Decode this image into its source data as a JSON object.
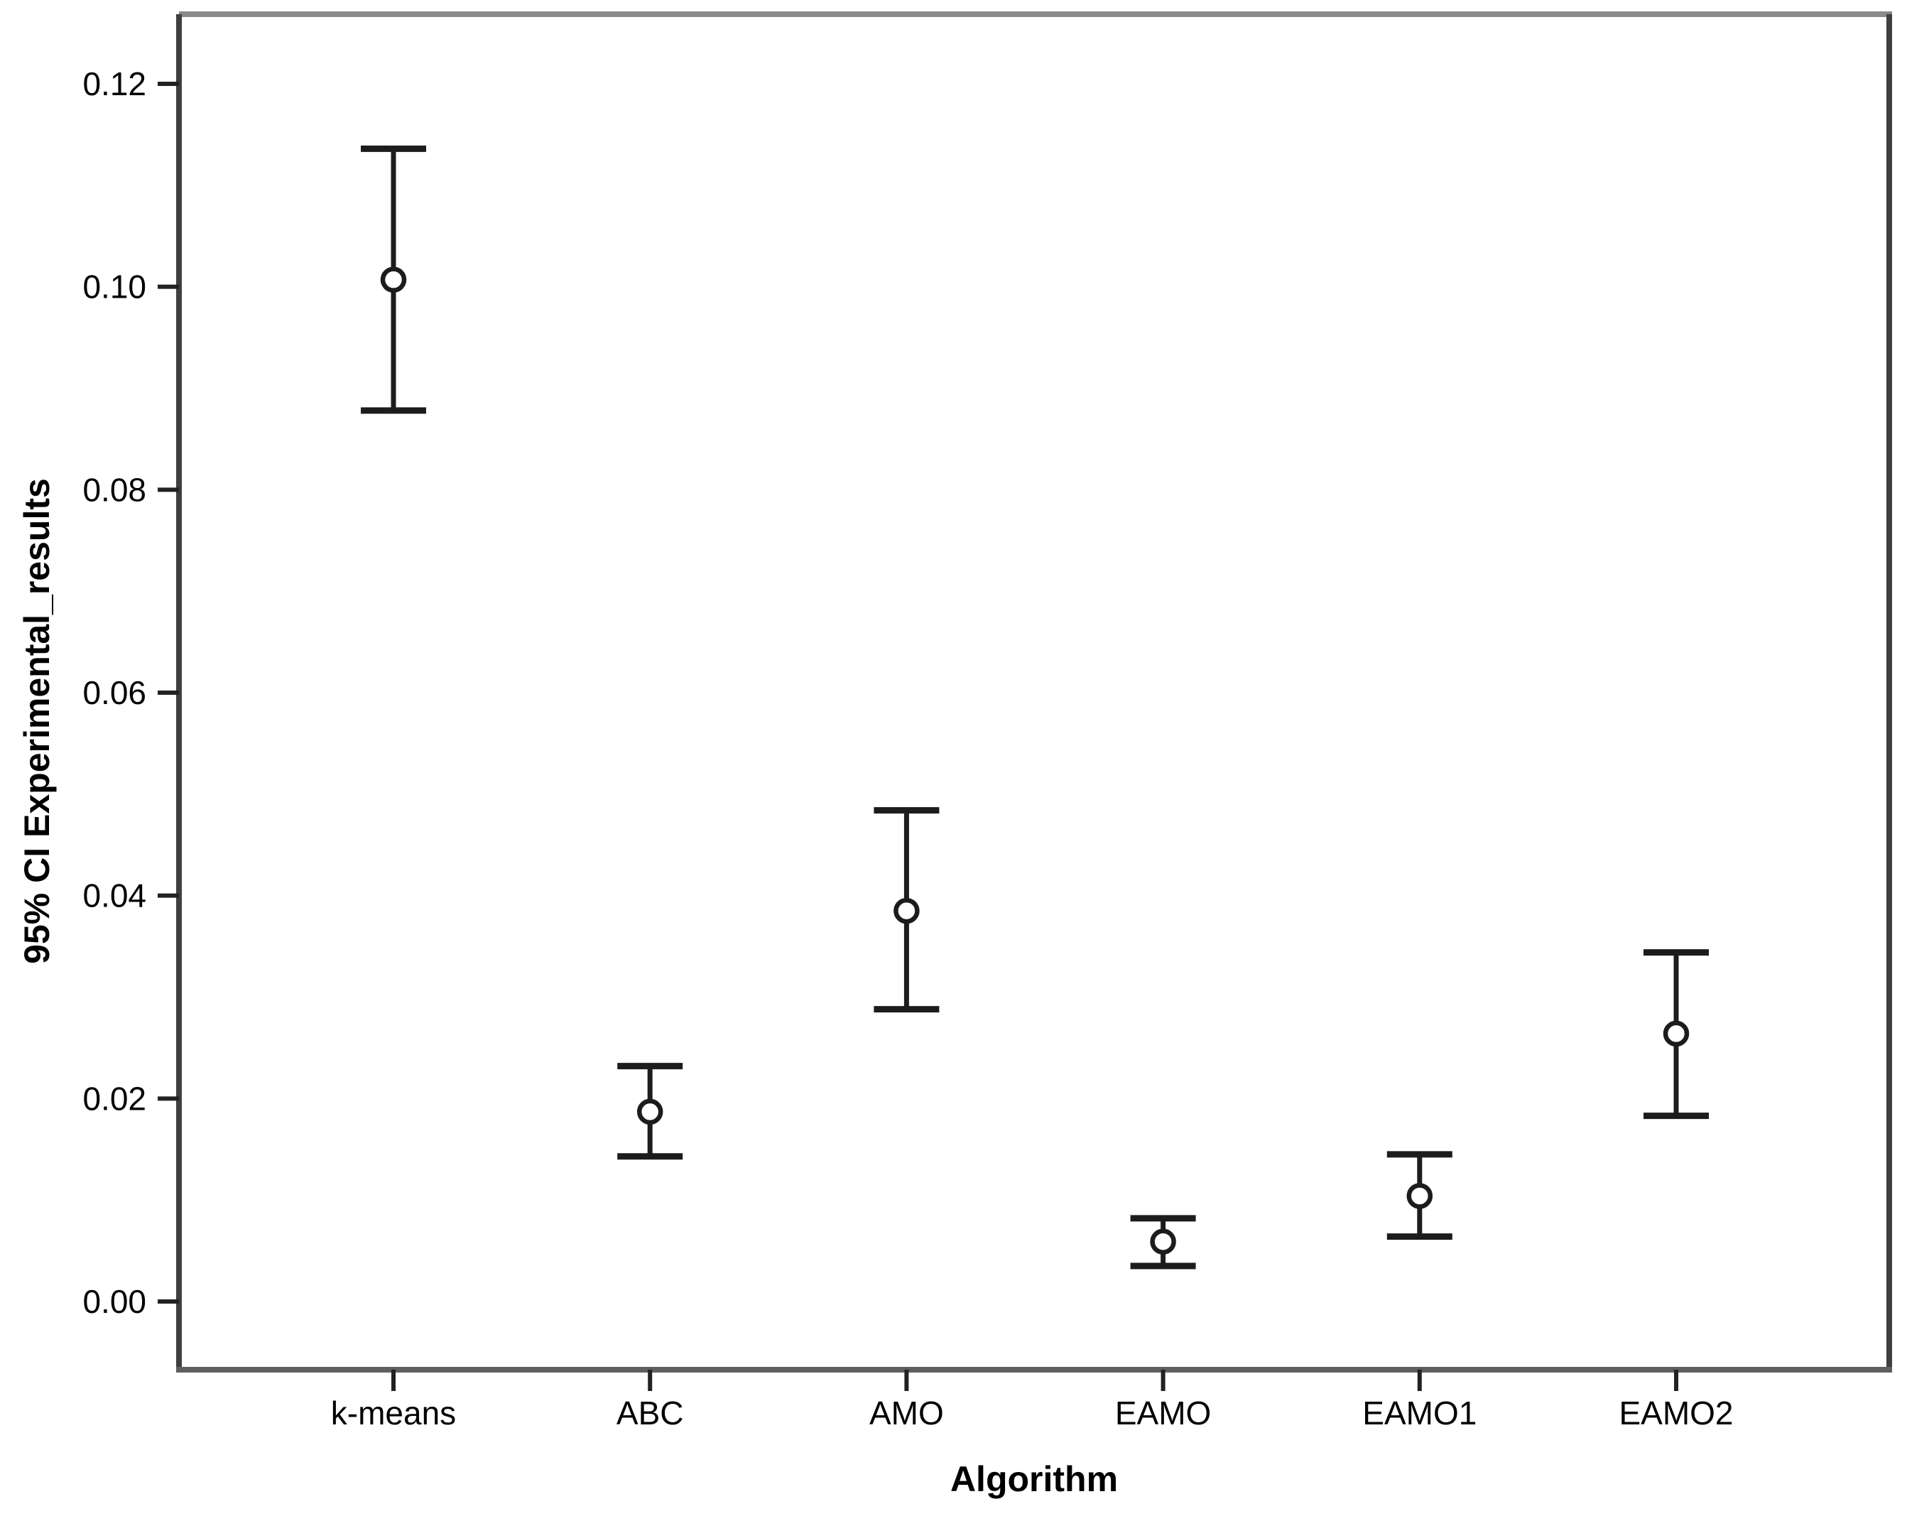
{
  "figure": {
    "background_color": "#ffffff",
    "frame_colors": {
      "top": "#8a8a8a",
      "right": "#3f3f3f",
      "left": "#3f3f3f",
      "bottom": "#5f5f5f"
    },
    "errorbar_color": "#1c1c1c",
    "marker_style": "open-circle",
    "marker_fill": "#ffffff"
  },
  "chart_data": {
    "type": "scatter",
    "subtype": "error-bar-95ci",
    "title": "",
    "xlabel": "Algorithm",
    "ylabel": "95% CI Experimental_results",
    "categories": [
      "k-means",
      "ABC",
      "AMO",
      "EAMO",
      "EAMO1",
      "EAMO2"
    ],
    "series": [
      {
        "name": "95% CI Experimental_results",
        "means": [
          0.1007,
          0.0187,
          0.0385,
          0.0059,
          0.0104,
          0.0264
        ],
        "ci_low": [
          0.0878,
          0.0143,
          0.0288,
          0.0035,
          0.0064,
          0.0183
        ],
        "ci_high": [
          0.1136,
          0.0232,
          0.0484,
          0.0082,
          0.0145,
          0.0344
        ]
      }
    ],
    "y_tick_values": [
      0.0,
      0.02,
      0.04,
      0.06,
      0.08,
      0.1,
      0.12
    ],
    "y_tick_labels": [
      "0.00",
      "0.02",
      "0.04",
      "0.06",
      "0.08",
      "0.10",
      "0.12"
    ],
    "ylim": [
      -0.0067,
      0.1269
    ],
    "grid": false,
    "legend": null
  }
}
